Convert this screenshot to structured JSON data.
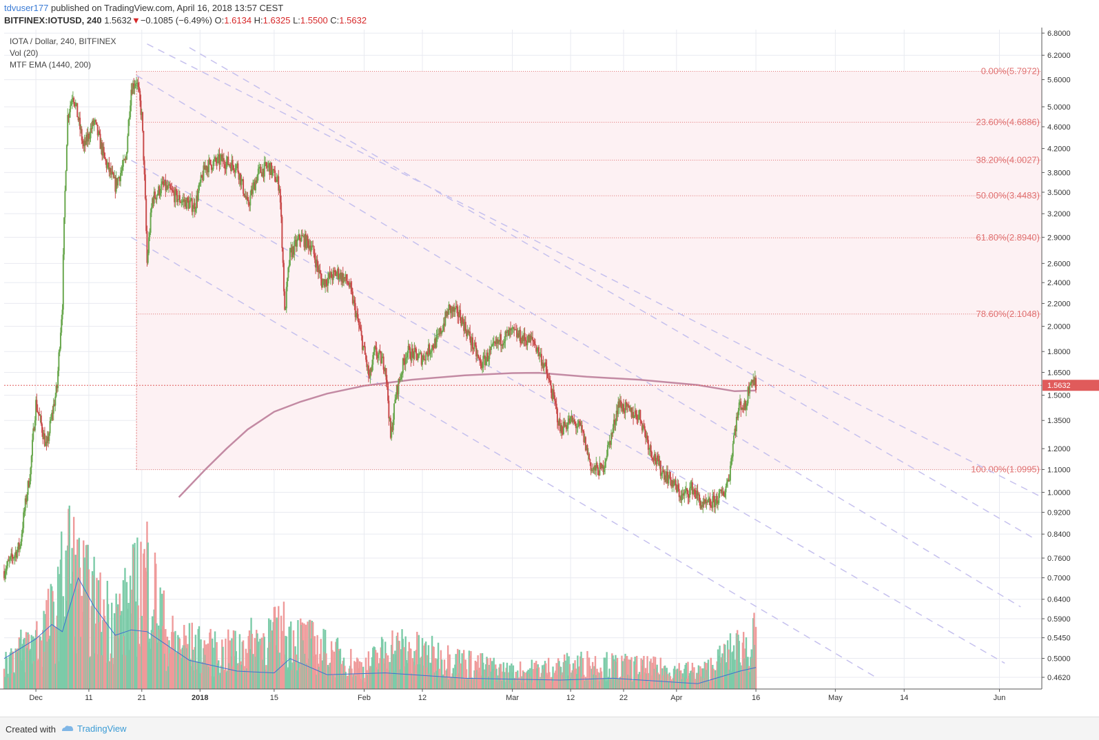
{
  "header": {
    "user": "tdvuser177",
    "published_text": "published on TradingView.com, April 16, 2018 13:57 CEST",
    "symbol": "BITFINEX:IOTUSD, 240",
    "last": "1.5632",
    "arrow": "▼",
    "change": "−0.1085 (−6.49%)",
    "o_label": "O:",
    "o_value": "1.6134",
    "h_label": "H:",
    "h_value": "1.6325",
    "l_label": "L:",
    "l_value": "1.5500",
    "c_label": "C:",
    "c_value": "1.5632"
  },
  "footer": {
    "created_with": "Created with",
    "brand": "TradingView"
  },
  "chart_data": {
    "type": "candlestick",
    "legend": [
      "IOTA / Dollar, 240, BITFINEX",
      "Vol (20)",
      "MTF EMA (1440, 200)"
    ],
    "y_scale": "log",
    "ylim": [
      0.44,
      6.9
    ],
    "y_ticks": [
      "6.8000",
      "6.2000",
      "5.6000",
      "5.0000",
      "4.6000",
      "4.2000",
      "3.8000",
      "3.5000",
      "3.2000",
      "2.9000",
      "2.6000",
      "2.4000",
      "2.2000",
      "2.0000",
      "1.8000",
      "1.6500",
      "1.5000",
      "1.3500",
      "1.2000",
      "1.1000",
      "1.0000",
      "0.9200",
      "0.8400",
      "0.7600",
      "0.7000",
      "0.6400",
      "0.5900",
      "0.5450",
      "0.5000",
      "0.4620"
    ],
    "y_tick_values": [
      6.8,
      6.2,
      5.6,
      5.0,
      4.6,
      4.2,
      3.8,
      3.5,
      3.2,
      2.9,
      2.6,
      2.4,
      2.2,
      2.0,
      1.8,
      1.65,
      1.5,
      1.35,
      1.2,
      1.1,
      1.0,
      0.92,
      0.84,
      0.76,
      0.7,
      0.64,
      0.59,
      0.545,
      0.5,
      0.462
    ],
    "x_range": [
      "2017-11-25",
      "2018-06-09"
    ],
    "x_ticks": [
      {
        "label": "Dec",
        "date": "2017-12-01"
      },
      {
        "label": "11",
        "date": "2017-12-11"
      },
      {
        "label": "21",
        "date": "2017-12-21"
      },
      {
        "label": "2018",
        "date": "2018-01-01"
      },
      {
        "label": "15",
        "date": "2018-01-15"
      },
      {
        "label": "Feb",
        "date": "2018-02-01"
      },
      {
        "label": "12",
        "date": "2018-02-12"
      },
      {
        "label": "Mar",
        "date": "2018-03-01"
      },
      {
        "label": "12",
        "date": "2018-03-12"
      },
      {
        "label": "22",
        "date": "2018-03-22"
      },
      {
        "label": "Apr",
        "date": "2018-04-01"
      },
      {
        "label": "16",
        "date": "2018-04-16"
      },
      {
        "label": "May",
        "date": "2018-05-01"
      },
      {
        "label": "14",
        "date": "2018-05-14"
      },
      {
        "label": "Jun",
        "date": "2018-06-01"
      }
    ],
    "price_path": [
      [
        "2017-11-25",
        0.72
      ],
      [
        "2017-11-28",
        0.8
      ],
      [
        "2017-11-30",
        1.1
      ],
      [
        "2017-12-01",
        1.45
      ],
      [
        "2017-12-03",
        1.2
      ],
      [
        "2017-12-05",
        1.55
      ],
      [
        "2017-12-06",
        2.2
      ],
      [
        "2017-12-07",
        4.8
      ],
      [
        "2017-12-08",
        5.3
      ],
      [
        "2017-12-10",
        4.2
      ],
      [
        "2017-12-12",
        4.7
      ],
      [
        "2017-12-14",
        4.0
      ],
      [
        "2017-12-16",
        3.6
      ],
      [
        "2017-12-18",
        4.0
      ],
      [
        "2017-12-19",
        5.4
      ],
      [
        "2017-12-20",
        5.6
      ],
      [
        "2017-12-21",
        4.8
      ],
      [
        "2017-12-22",
        2.6
      ],
      [
        "2017-12-23",
        3.4
      ],
      [
        "2017-12-25",
        3.6
      ],
      [
        "2017-12-28",
        3.4
      ],
      [
        "2017-12-31",
        3.3
      ],
      [
        "2018-01-02",
        3.9
      ],
      [
        "2018-01-05",
        4.0
      ],
      [
        "2018-01-08",
        3.9
      ],
      [
        "2018-01-10",
        3.3
      ],
      [
        "2018-01-12",
        3.8
      ],
      [
        "2018-01-14",
        3.9
      ],
      [
        "2018-01-16",
        3.6
      ],
      [
        "2018-01-17",
        2.1
      ],
      [
        "2018-01-18",
        2.7
      ],
      [
        "2018-01-20",
        2.9
      ],
      [
        "2018-01-22",
        2.8
      ],
      [
        "2018-01-24",
        2.4
      ],
      [
        "2018-01-27",
        2.5
      ],
      [
        "2018-01-29",
        2.4
      ],
      [
        "2018-01-31",
        2.0
      ],
      [
        "2018-02-02",
        1.6
      ],
      [
        "2018-02-03",
        1.8
      ],
      [
        "2018-02-05",
        1.7
      ],
      [
        "2018-02-06",
        1.25
      ],
      [
        "2018-02-07",
        1.5
      ],
      [
        "2018-02-09",
        1.8
      ],
      [
        "2018-02-12",
        1.75
      ],
      [
        "2018-02-15",
        1.9
      ],
      [
        "2018-02-17",
        2.15
      ],
      [
        "2018-02-19",
        2.1
      ],
      [
        "2018-02-21",
        1.9
      ],
      [
        "2018-02-23",
        1.7
      ],
      [
        "2018-02-25",
        1.8
      ],
      [
        "2018-02-27",
        1.9
      ],
      [
        "2018-03-01",
        1.95
      ],
      [
        "2018-03-03",
        1.9
      ],
      [
        "2018-03-05",
        1.88
      ],
      [
        "2018-03-07",
        1.7
      ],
      [
        "2018-03-09",
        1.45
      ],
      [
        "2018-03-10",
        1.3
      ],
      [
        "2018-03-12",
        1.35
      ],
      [
        "2018-03-14",
        1.3
      ],
      [
        "2018-03-16",
        1.1
      ],
      [
        "2018-03-18",
        1.1
      ],
      [
        "2018-03-20",
        1.3
      ],
      [
        "2018-03-21",
        1.45
      ],
      [
        "2018-03-23",
        1.4
      ],
      [
        "2018-03-25",
        1.38
      ],
      [
        "2018-03-27",
        1.2
      ],
      [
        "2018-03-29",
        1.1
      ],
      [
        "2018-03-31",
        1.05
      ],
      [
        "2018-04-02",
        0.98
      ],
      [
        "2018-04-04",
        1.02
      ],
      [
        "2018-04-06",
        0.94
      ],
      [
        "2018-04-08",
        0.96
      ],
      [
        "2018-04-10",
        1.0
      ],
      [
        "2018-04-11",
        1.08
      ],
      [
        "2018-04-12",
        1.3
      ],
      [
        "2018-04-13",
        1.45
      ],
      [
        "2018-04-14",
        1.42
      ],
      [
        "2018-04-15",
        1.62
      ],
      [
        "2018-04-16",
        1.5632
      ]
    ],
    "ema_path": [
      [
        "2017-12-28",
        0.98
      ],
      [
        "2018-01-02",
        1.1
      ],
      [
        "2018-01-06",
        1.2
      ],
      [
        "2018-01-10",
        1.3
      ],
      [
        "2018-01-15",
        1.4
      ],
      [
        "2018-01-20",
        1.46
      ],
      [
        "2018-01-25",
        1.51
      ],
      [
        "2018-02-01",
        1.56
      ],
      [
        "2018-02-10",
        1.6
      ],
      [
        "2018-02-20",
        1.63
      ],
      [
        "2018-03-01",
        1.645
      ],
      [
        "2018-03-06",
        1.647
      ],
      [
        "2018-03-15",
        1.62
      ],
      [
        "2018-03-25",
        1.6
      ],
      [
        "2018-04-05",
        1.565
      ],
      [
        "2018-04-12",
        1.525
      ],
      [
        "2018-04-16",
        1.53
      ]
    ],
    "volume_path": [
      [
        "2017-11-25",
        0.2
      ],
      [
        "2017-12-01",
        0.35
      ],
      [
        "2017-12-05",
        0.55
      ],
      [
        "2017-12-07",
        0.95
      ],
      [
        "2017-12-09",
        0.75
      ],
      [
        "2017-12-13",
        0.55
      ],
      [
        "2017-12-17",
        0.5
      ],
      [
        "2017-12-20",
        0.7
      ],
      [
        "2017-12-22",
        0.85
      ],
      [
        "2017-12-26",
        0.35
      ],
      [
        "2018-01-05",
        0.25
      ],
      [
        "2018-01-17",
        0.4
      ],
      [
        "2018-02-01",
        0.15
      ],
      [
        "2018-02-06",
        0.3
      ],
      [
        "2018-03-01",
        0.12
      ],
      [
        "2018-03-15",
        0.18
      ],
      [
        "2018-04-06",
        0.12
      ],
      [
        "2018-04-13",
        0.3
      ],
      [
        "2018-04-16",
        0.35
      ]
    ],
    "vol_ma_path": [
      [
        "2017-11-25",
        0.17
      ],
      [
        "2017-12-01",
        0.28
      ],
      [
        "2017-12-04",
        0.36
      ],
      [
        "2017-12-06",
        0.32
      ],
      [
        "2017-12-09",
        0.62
      ],
      [
        "2017-12-12",
        0.46
      ],
      [
        "2017-12-16",
        0.3
      ],
      [
        "2017-12-19",
        0.33
      ],
      [
        "2017-12-22",
        0.32
      ],
      [
        "2017-12-25",
        0.26
      ],
      [
        "2017-12-30",
        0.16
      ],
      [
        "2018-01-08",
        0.1
      ],
      [
        "2018-01-15",
        0.09
      ],
      [
        "2018-01-18",
        0.17
      ],
      [
        "2018-01-25",
        0.08
      ],
      [
        "2018-02-05",
        0.09
      ],
      [
        "2018-02-20",
        0.06
      ],
      [
        "2018-03-10",
        0.05
      ],
      [
        "2018-03-20",
        0.06
      ],
      [
        "2018-04-05",
        0.03
      ],
      [
        "2018-04-13",
        0.1
      ],
      [
        "2018-04-16",
        0.12
      ]
    ],
    "fib_range": {
      "from": "2017-12-20",
      "to": "2018-06-09",
      "lo": 1.0995,
      "hi": 5.7972
    },
    "fib_levels": [
      {
        "label": "0.00%(5.7972)",
        "price": 5.7972
      },
      {
        "label": "23.60%(4.6886)",
        "price": 4.6886
      },
      {
        "label": "38.20%(4.0027)",
        "price": 4.0027
      },
      {
        "label": "50.00%(3.4483)",
        "price": 3.4483
      },
      {
        "label": "61.80%(2.8940)",
        "price": 2.894
      },
      {
        "label": "78.60%(2.1048)",
        "price": 2.1048
      },
      {
        "label": "100.00%(1.0995)",
        "price": 1.0995
      }
    ],
    "channel_lines": [
      {
        "x1": "2017-12-22",
        "y1": 6.5,
        "x2": "2018-06-09",
        "y2": 0.98
      },
      {
        "x1": "2017-12-30",
        "y1": 6.4,
        "x2": "2018-06-08",
        "y2": 0.82
      },
      {
        "x1": "2017-12-20",
        "y1": 5.7,
        "x2": "2018-06-05",
        "y2": 0.62
      },
      {
        "x1": "2017-12-19",
        "y1": 4.0,
        "x2": "2018-06-02",
        "y2": 0.49
      },
      {
        "x1": "2017-12-19",
        "y1": 2.9,
        "x2": "2018-05-09",
        "y2": 0.46
      }
    ],
    "last_price": {
      "label": "1.5632",
      "value": 1.5632
    },
    "colors": {
      "up": "#6aa84f",
      "down": "#c94b4b",
      "vol_up": "#7ccba8",
      "vol_down": "#ef9a9a",
      "ema": "#c38aa3",
      "vol_ma": "#3b6fd1",
      "fib": "#e07070",
      "fib_fill": "#fdf1f3",
      "channel": "#c5c0ee",
      "grid": "#e8eaf0",
      "last_price": "#e05b5b"
    }
  }
}
